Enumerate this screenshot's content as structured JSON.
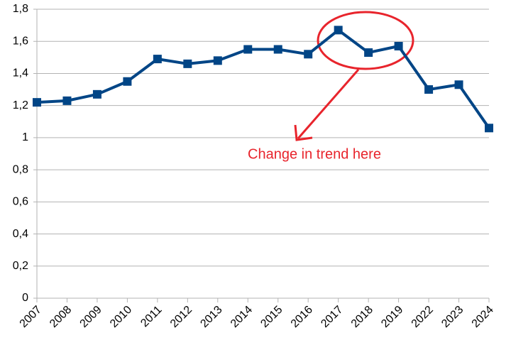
{
  "chart_data": {
    "type": "line",
    "categories": [
      "2007",
      "2008",
      "2009",
      "2010",
      "2011",
      "2012",
      "2013",
      "2014",
      "2015",
      "2016",
      "2017",
      "2018",
      "2019",
      "2022",
      "2023",
      "2024"
    ],
    "series": [
      {
        "color": "#004586",
        "values": [
          1.22,
          1.23,
          1.27,
          1.35,
          1.49,
          1.46,
          1.48,
          1.55,
          1.55,
          1.52,
          1.67,
          1.53,
          1.57,
          1.3,
          1.33,
          1.06
        ]
      }
    ],
    "ylim": [
      0,
      1.8
    ],
    "yticks": [
      0,
      {
        "value": 0.2,
        "label": "0,2"
      },
      {
        "value": 0.4,
        "label": "0,4"
      },
      {
        "value": 0.6,
        "label": "0,6"
      },
      {
        "value": 0.8,
        "label": "0,8"
      },
      1,
      {
        "value": 1.2,
        "label": "1,2"
      },
      {
        "value": 1.4,
        "label": "1,4"
      },
      {
        "value": 1.6,
        "label": "1,6"
      },
      {
        "value": 1.8,
        "label": "1,8"
      }
    ],
    "grid": true,
    "annotation": "Change in trend here",
    "annotation_color": "#e8242c"
  }
}
